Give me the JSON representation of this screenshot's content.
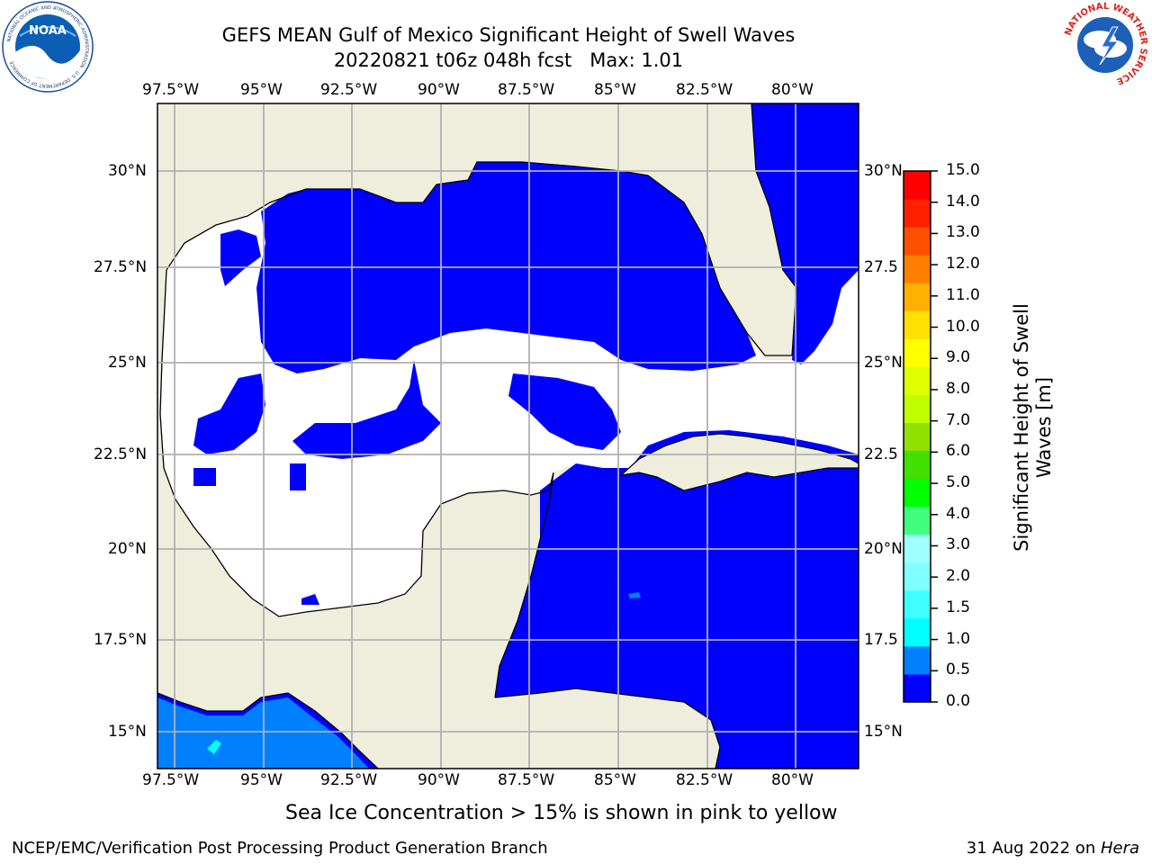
{
  "title_line1": "GEFS MEAN Gulf of Mexico Significant Height of Swell Waves",
  "title_line2": "20220821 t06z 048h fcst   Max: 1.01",
  "logos": {
    "noaa_text": "NOAA",
    "noaa_ring": "NATIONAL OCEANIC AND ATMOSPHERIC ADMINISTRATION · U.S. DEPARTMENT OF COMMERCE",
    "nws_ring": "NATIONAL WEATHER SERVICE"
  },
  "map": {
    "lon_ticks": [
      "97.5°W",
      "95°W",
      "92.5°W",
      "90°W",
      "87.5°W",
      "85°W",
      "82.5°W",
      "80°W"
    ],
    "lat_ticks_left": [
      "30°N",
      "27.5°N",
      "25°N",
      "22.5°N",
      "20°N",
      "17.5°N",
      "15°N"
    ],
    "lat_ticks_right": [
      "30°N",
      "27.5",
      "25°N",
      "22.5",
      "20°N",
      "17.5",
      "15°N"
    ],
    "land_color": "#efeedc",
    "ocean_low_color": "#0000ff",
    "ocean_mid_color": "#0080ff",
    "grid_color": "#b0b0b0"
  },
  "colorbar": {
    "ticks": [
      "15.0",
      "14.0",
      "13.0",
      "12.0",
      "11.0",
      "10.0",
      "9.0",
      "8.0",
      "7.0",
      "6.0",
      "5.0",
      "4.0",
      "3.0",
      "2.0",
      "1.5",
      "1.0",
      "0.5",
      "0.0"
    ],
    "colors_bottom_to_top": [
      "#0000ff",
      "#0080ff",
      "#00ffff",
      "#40ffff",
      "#80ffff",
      "#a0ffff",
      "#40ff80",
      "#00ff00",
      "#40e000",
      "#90e000",
      "#c0ff00",
      "#e0ff00",
      "#ffff00",
      "#ffe000",
      "#ffb000",
      "#ff8000",
      "#ff5000",
      "#ff2000",
      "#ff0000"
    ],
    "label_line1": "Significant Height of Swell",
    "label_line2": "Waves [m]"
  },
  "note": "Sea Ice Concentration > 15% is shown in pink to yellow",
  "footer_left": "NCEP/EMC/Verification Post Processing Product Generation Branch",
  "footer_right_prefix": "31 Aug 2022 on ",
  "footer_right_host": "Hera"
}
